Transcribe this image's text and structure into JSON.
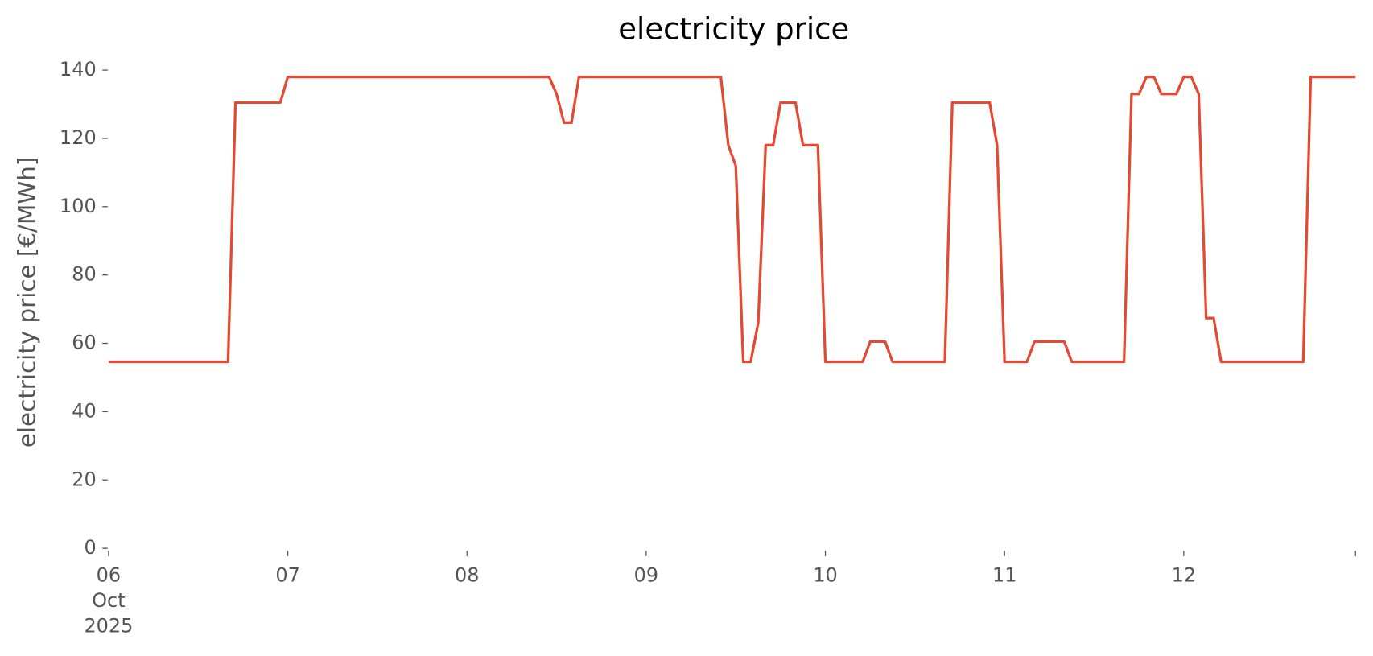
{
  "chart_data": {
    "type": "line",
    "title": "electricity price",
    "ylabel": "electricity price [€/MWh]",
    "x": [
      0,
      16,
      17,
      23,
      24,
      59,
      60,
      61,
      62,
      63,
      82,
      83,
      84,
      85,
      86,
      87,
      88,
      89,
      90,
      92,
      93,
      95,
      96,
      101,
      102,
      104,
      105,
      112,
      113,
      118,
      119,
      120,
      123,
      124,
      128,
      129,
      136,
      137,
      138,
      139,
      140,
      141,
      143,
      144,
      145,
      146,
      147,
      148,
      149,
      160,
      161,
      167
    ],
    "series": [
      {
        "name": "electricity price",
        "color": "#E24A33",
        "values": [
          54.6,
          54.6,
          130.5,
          130.5,
          138,
          138,
          133,
          124.6,
          124.6,
          138,
          138,
          118,
          112,
          54.6,
          54.6,
          66,
          118,
          118,
          130.5,
          130.5,
          118,
          118,
          54.6,
          54.6,
          60.5,
          60.5,
          54.6,
          54.6,
          130.5,
          130.5,
          118,
          54.6,
          54.6,
          60.5,
          60.5,
          54.6,
          54.6,
          133,
          133,
          138,
          138,
          133,
          133,
          138,
          138,
          133,
          67.4,
          67.4,
          54.6,
          54.6,
          138,
          138
        ]
      }
    ],
    "xlim": [
      0,
      167
    ],
    "xticks": [
      {
        "value": 0,
        "label": "06\nOct\n2025"
      },
      {
        "value": 24,
        "label": "07"
      },
      {
        "value": 48,
        "label": "08"
      },
      {
        "value": 72,
        "label": "09"
      },
      {
        "value": 96,
        "label": "10"
      },
      {
        "value": 120,
        "label": "11"
      },
      {
        "value": 144,
        "label": "12"
      }
    ],
    "ylim": [
      0,
      140
    ],
    "yticks": [
      0,
      20,
      40,
      60,
      80,
      100,
      120,
      140
    ],
    "grid": false
  }
}
